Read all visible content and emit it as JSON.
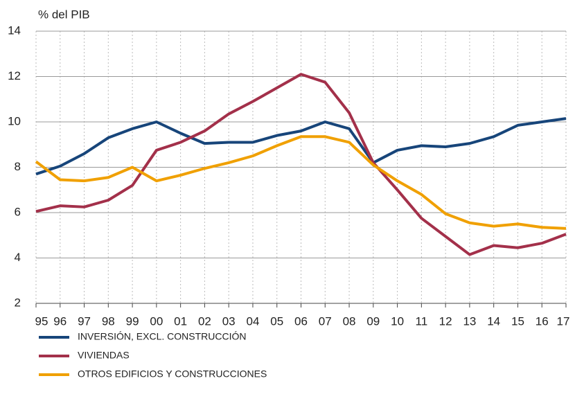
{
  "chart_data": {
    "type": "line",
    "y_axis_label": "% del PIB",
    "categories": [
      "95",
      "96",
      "97",
      "98",
      "99",
      "00",
      "01",
      "02",
      "03",
      "04",
      "05",
      "06",
      "07",
      "08",
      "09",
      "10",
      "11",
      "12",
      "13",
      "14",
      "15",
      "16",
      "17"
    ],
    "series": [
      {
        "name": "INVERSIÓN, EXCL. CONSTRUCCIÓN",
        "color": "#17457a",
        "values": [
          7.7,
          8.05,
          8.6,
          9.3,
          9.7,
          10.0,
          9.5,
          9.05,
          9.1,
          9.1,
          9.4,
          9.6,
          10.0,
          9.7,
          8.2,
          8.75,
          8.95,
          8.9,
          9.05,
          9.35,
          9.85,
          10.0,
          10.15
        ]
      },
      {
        "name": "VIVIENDAS",
        "color": "#a3304a",
        "values": [
          6.05,
          6.3,
          6.25,
          6.55,
          7.2,
          8.75,
          9.1,
          9.6,
          10.35,
          10.9,
          11.5,
          12.1,
          11.75,
          10.4,
          8.2,
          7.0,
          5.75,
          4.95,
          4.15,
          4.55,
          4.45,
          4.65,
          5.05
        ]
      },
      {
        "name": "OTROS EDIFICIOS Y CONSTRUCCIONES",
        "color": "#f0a000",
        "values": [
          8.25,
          7.45,
          7.4,
          7.55,
          8.0,
          7.4,
          7.65,
          7.95,
          8.2,
          8.5,
          8.95,
          9.35,
          9.35,
          9.1,
          8.1,
          7.4,
          6.8,
          5.95,
          5.55,
          5.4,
          5.5,
          5.35,
          5.3
        ]
      }
    ],
    "ylim": [
      2,
      14
    ],
    "yticks": [
      2,
      4,
      6,
      8,
      10,
      12,
      14
    ],
    "grid": true
  }
}
